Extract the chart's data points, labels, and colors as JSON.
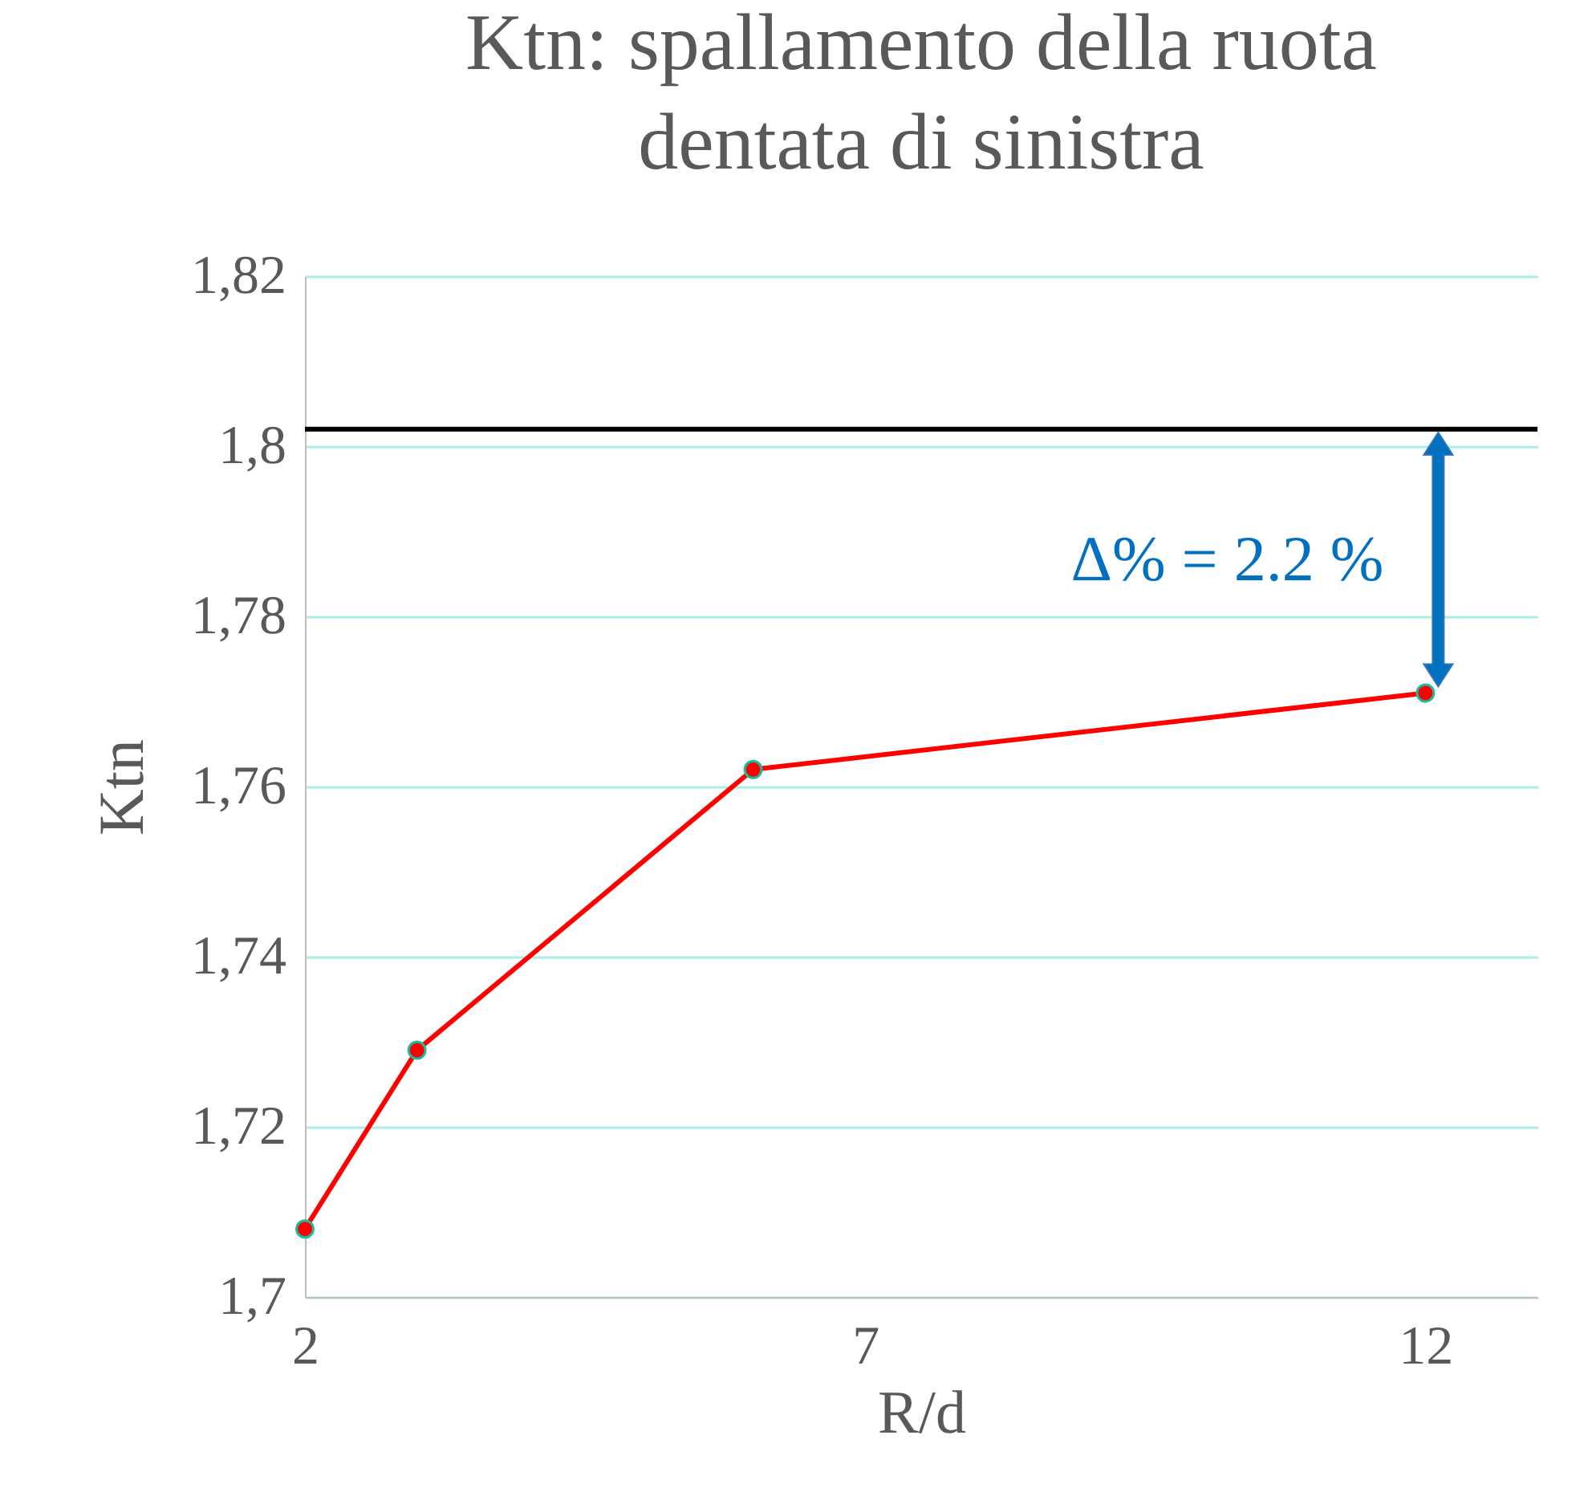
{
  "chart_data": {
    "type": "line",
    "title": "Ktn: spallamento della ruota dentata di sinistra",
    "xlabel": "R/d",
    "ylabel": "Ktn",
    "x": [
      2,
      3,
      6,
      12
    ],
    "series": [
      {
        "color": "#ff0000",
        "values": [
          1.708,
          1.729,
          1.762,
          1.771
        ]
      }
    ],
    "xlim": [
      2,
      13
    ],
    "xticks": [
      2,
      7,
      12
    ],
    "ylim": [
      1.7,
      1.82
    ],
    "yticks": [
      {
        "value": 1.7,
        "label": "1,7"
      },
      {
        "value": 1.72,
        "label": "1,72"
      },
      {
        "value": 1.74,
        "label": "1,74"
      },
      {
        "value": 1.76,
        "label": "1,76"
      },
      {
        "value": 1.78,
        "label": "1,78"
      },
      {
        "value": 1.8,
        "label": "1,8"
      },
      {
        "value": 1.82,
        "label": "1,82"
      }
    ],
    "ref_lines": [
      {
        "axis": "y",
        "value": 1.802,
        "color": "#000000"
      }
    ],
    "annotations": [
      "Δ% = 2.2 %"
    ],
    "grid": "y",
    "marker": "circle",
    "line_style": "solid"
  }
}
